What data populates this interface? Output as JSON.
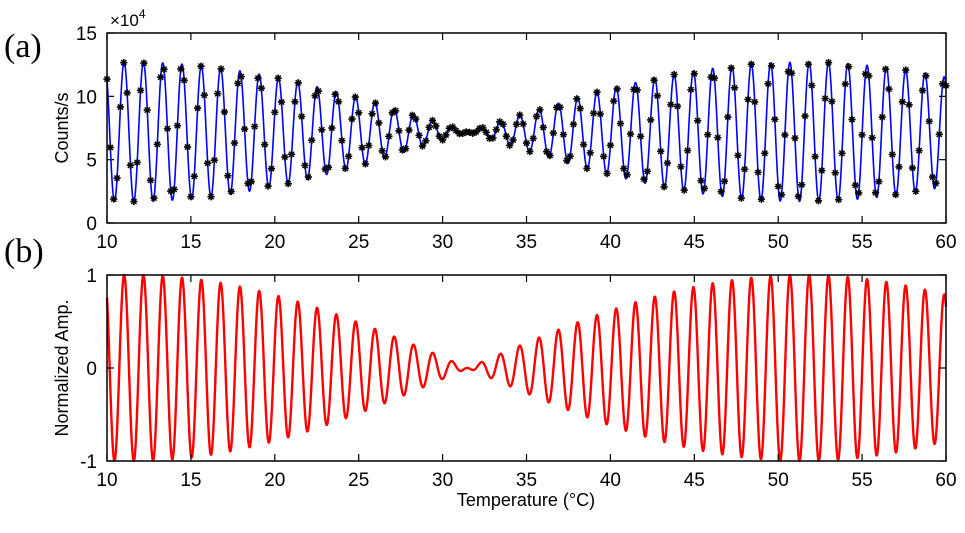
{
  "chart_data": [
    {
      "type": "line",
      "panel_label": "(a)",
      "ylabel": "Counts/s",
      "y_multiplier": {
        "base": "×10",
        "exponent": "4"
      },
      "xlim": [
        10,
        60
      ],
      "ylim": [
        0,
        15
      ],
      "x_ticks": [
        10,
        15,
        20,
        25,
        30,
        35,
        40,
        45,
        50,
        55,
        60
      ],
      "y_ticks": [
        0,
        5,
        10,
        15
      ],
      "grid": false,
      "series": [
        {
          "kind": "fit-line",
          "color": "#0000ff",
          "model": {
            "mean": 7.2,
            "amplitude": 5.5,
            "fringe_period": 1.15,
            "envelope_null": 31.5,
            "envelope_period": 40,
            "phase_deg": 60,
            "step": 0.02
          }
        },
        {
          "kind": "measured-points",
          "color": "#000000",
          "marker": "*",
          "x_step": 0.2
        }
      ]
    },
    {
      "type": "line",
      "panel_label": "(b)",
      "xlabel": "Temperature (°C)",
      "ylabel": "Normalized Amp.",
      "xlim": [
        10,
        60
      ],
      "ylim": [
        -1,
        1
      ],
      "x_ticks": [
        10,
        15,
        20,
        25,
        30,
        35,
        40,
        45,
        50,
        55,
        60
      ],
      "y_ticks": [
        -1,
        0,
        1
      ],
      "grid": false,
      "series": [
        {
          "kind": "line",
          "color": "#ff0000",
          "model": {
            "mean": 0,
            "amplitude": 1,
            "fringe_period": 1.15,
            "envelope_null": 31.5,
            "envelope_period": 40,
            "phase_deg": 60,
            "step": 0.02
          }
        }
      ]
    }
  ],
  "colors": {
    "fit_line": "#0000ff",
    "markers": "#000000",
    "normalized_line": "#ff0000"
  }
}
